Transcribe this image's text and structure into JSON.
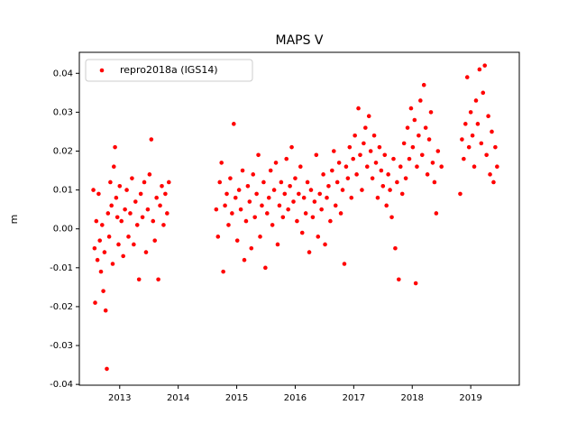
{
  "chart_data": {
    "type": "scatter",
    "title": "MAPS V",
    "y_label": "m",
    "legend": "upper left",
    "xlim": [
      2012.31,
      2019.83
    ],
    "ylim": [
      -0.0402,
      0.0454
    ],
    "xticks": [
      2013,
      2014,
      2015,
      2016,
      2017,
      2018,
      2019
    ],
    "yticks": [
      -0.04,
      -0.03,
      -0.02,
      -0.01,
      {
        "value": 0,
        "label": "0.00"
      },
      0.01,
      0.02,
      0.03,
      0.04
    ],
    "x": [
      2012.55,
      2012.57,
      2012.58,
      2012.6,
      2012.62,
      2012.64,
      2012.66,
      2012.68,
      2012.7,
      2012.72,
      2012.74,
      2012.76,
      2012.78,
      2012.8,
      2012.82,
      2012.84,
      2012.86,
      2012.88,
      2012.9,
      2012.92,
      2012.94,
      2012.96,
      2012.98,
      2013.0,
      2013.03,
      2013.06,
      2013.09,
      2013.12,
      2013.15,
      2013.18,
      2013.21,
      2013.24,
      2013.27,
      2013.3,
      2013.33,
      2013.36,
      2013.39,
      2013.42,
      2013.45,
      2013.48,
      2013.51,
      2013.54,
      2013.57,
      2013.6,
      2013.63,
      2013.66,
      2013.69,
      2013.72,
      2013.75,
      2013.78,
      2013.81,
      2013.84,
      2014.65,
      2014.68,
      2014.71,
      2014.74,
      2014.77,
      2014.8,
      2014.83,
      2014.86,
      2014.89,
      2014.92,
      2014.95,
      2014.98,
      2015.01,
      2015.04,
      2015.07,
      2015.1,
      2015.13,
      2015.16,
      2015.19,
      2015.22,
      2015.25,
      2015.28,
      2015.31,
      2015.34,
      2015.37,
      2015.4,
      2015.43,
      2015.46,
      2015.49,
      2015.52,
      2015.55,
      2015.58,
      2015.61,
      2015.64,
      2015.67,
      2015.7,
      2015.73,
      2015.76,
      2015.79,
      2015.82,
      2015.85,
      2015.88,
      2015.91,
      2015.94,
      2015.97,
      2016.0,
      2016.03,
      2016.06,
      2016.09,
      2016.12,
      2016.15,
      2016.18,
      2016.21,
      2016.24,
      2016.27,
      2016.3,
      2016.33,
      2016.36,
      2016.39,
      2016.42,
      2016.45,
      2016.48,
      2016.51,
      2016.54,
      2016.57,
      2016.6,
      2016.63,
      2016.66,
      2016.69,
      2016.72,
      2016.75,
      2016.78,
      2016.81,
      2016.84,
      2016.87,
      2016.9,
      2016.93,
      2016.96,
      2016.99,
      2017.02,
      2017.05,
      2017.08,
      2017.11,
      2017.14,
      2017.17,
      2017.2,
      2017.23,
      2017.26,
      2017.29,
      2017.32,
      2017.35,
      2017.38,
      2017.41,
      2017.44,
      2017.47,
      2017.5,
      2017.53,
      2017.56,
      2017.59,
      2017.62,
      2017.65,
      2017.68,
      2017.71,
      2017.74,
      2017.77,
      2017.8,
      2017.83,
      2017.86,
      2017.89,
      2017.92,
      2017.95,
      2017.98,
      2018.01,
      2018.04,
      2018.06,
      2018.08,
      2018.11,
      2018.14,
      2018.17,
      2018.2,
      2018.23,
      2018.26,
      2018.29,
      2018.32,
      2018.35,
      2018.38,
      2018.41,
      2018.44,
      2018.5,
      2018.82,
      2018.85,
      2018.88,
      2018.91,
      2018.94,
      2018.97,
      2019.0,
      2019.03,
      2019.06,
      2019.09,
      2019.12,
      2019.15,
      2019.18,
      2019.21,
      2019.24,
      2019.27,
      2019.3,
      2019.33,
      2019.36,
      2019.39,
      2019.42,
      2019.45
    ],
    "series": [
      {
        "name": "repro2018a (IGS14)",
        "color": "#ff0000",
        "values": [
          0.01,
          -0.005,
          -0.019,
          0.002,
          -0.008,
          0.009,
          -0.003,
          -0.011,
          0.001,
          -0.016,
          -0.006,
          -0.021,
          -0.036,
          0.004,
          -0.002,
          0.012,
          0.006,
          -0.009,
          0.016,
          0.021,
          0.008,
          0.003,
          -0.004,
          0.011,
          0.002,
          -0.007,
          0.005,
          0.01,
          -0.002,
          0.004,
          0.013,
          -0.004,
          0.007,
          0.001,
          -0.013,
          0.009,
          0.003,
          0.012,
          -0.006,
          0.005,
          0.014,
          0.023,
          0.002,
          -0.003,
          0.008,
          -0.013,
          0.006,
          0.011,
          0.001,
          0.009,
          0.004,
          0.012,
          0.005,
          -0.002,
          0.012,
          0.017,
          -0.011,
          0.006,
          0.009,
          0.001,
          0.013,
          0.004,
          0.027,
          0.008,
          -0.003,
          0.01,
          0.005,
          0.015,
          -0.008,
          0.002,
          0.011,
          0.007,
          -0.005,
          0.014,
          0.003,
          0.009,
          0.019,
          -0.002,
          0.006,
          0.012,
          -0.01,
          0.004,
          0.008,
          0.015,
          0.001,
          0.01,
          0.017,
          -0.004,
          0.006,
          0.012,
          0.003,
          0.009,
          0.018,
          0.005,
          0.011,
          0.021,
          0.007,
          0.013,
          0.002,
          0.009,
          0.016,
          -0.001,
          0.008,
          0.004,
          0.012,
          -0.006,
          0.01,
          0.003,
          0.007,
          0.019,
          -0.002,
          0.009,
          0.005,
          0.014,
          -0.004,
          0.008,
          0.011,
          0.002,
          0.015,
          0.02,
          0.006,
          0.012,
          0.017,
          0.004,
          0.01,
          -0.009,
          0.016,
          0.013,
          0.021,
          0.008,
          0.018,
          0.024,
          0.014,
          0.031,
          0.019,
          0.01,
          0.022,
          0.026,
          0.016,
          0.029,
          0.02,
          0.013,
          0.024,
          0.017,
          0.008,
          0.021,
          0.015,
          0.011,
          0.019,
          0.006,
          0.014,
          0.01,
          0.003,
          0.018,
          -0.005,
          0.012,
          -0.013,
          0.016,
          0.009,
          0.022,
          0.013,
          0.026,
          0.018,
          0.031,
          0.021,
          0.028,
          -0.014,
          0.016,
          0.024,
          0.033,
          0.019,
          0.037,
          0.026,
          0.014,
          0.023,
          0.03,
          0.017,
          0.012,
          0.004,
          0.02,
          0.016,
          0.009,
          0.023,
          0.018,
          0.027,
          0.039,
          0.021,
          0.03,
          0.024,
          0.016,
          0.033,
          0.027,
          0.041,
          0.022,
          0.035,
          0.042,
          0.019,
          0.029,
          0.014,
          0.025,
          0.012,
          0.021,
          0.016
        ]
      }
    ]
  }
}
